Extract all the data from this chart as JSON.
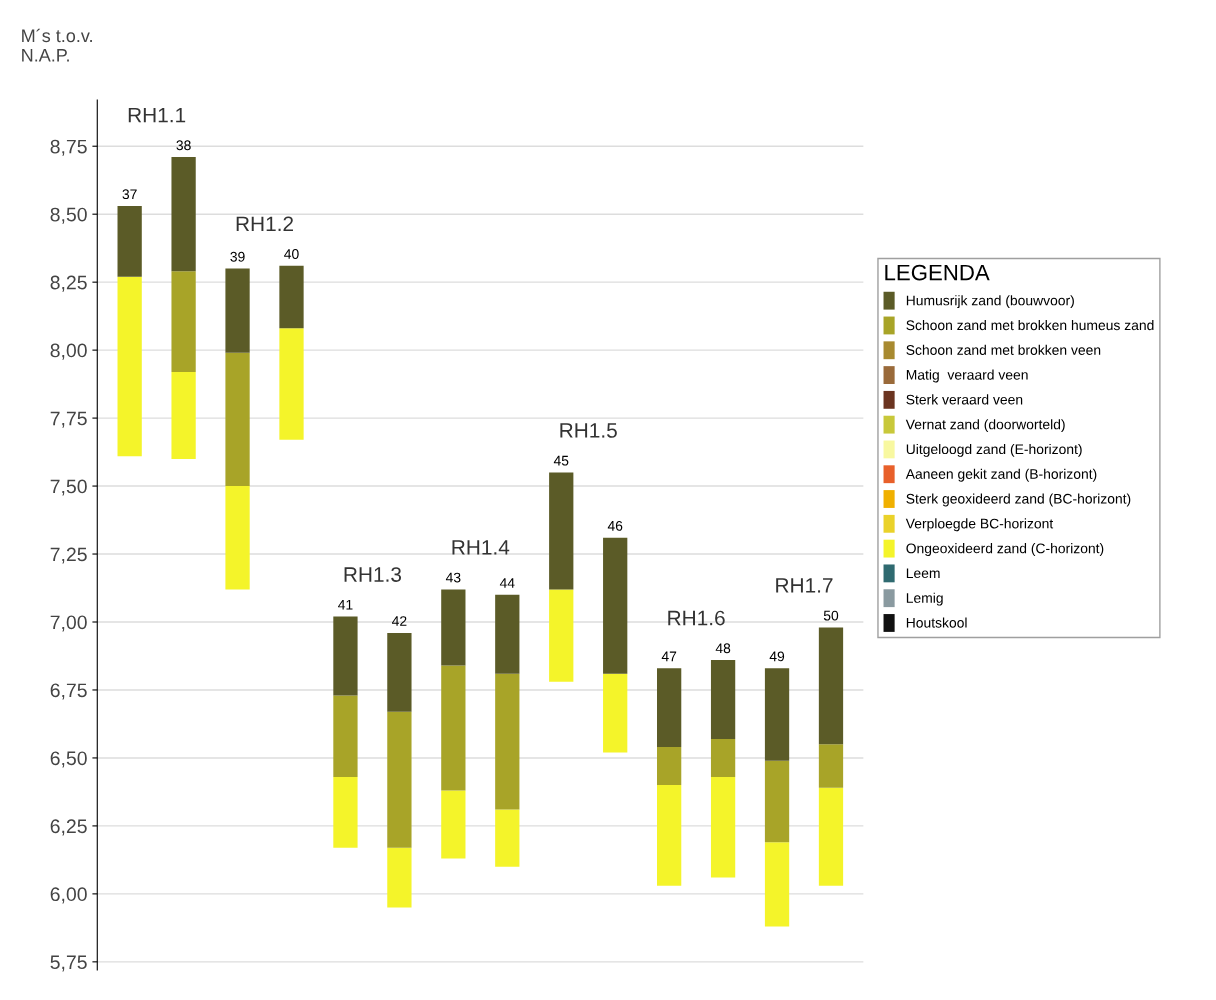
{
  "chart_data": {
    "type": "bar",
    "ylabel": "M´s t.o.v.\nN.A.P.",
    "legend_title": "LEGENDA",
    "categories": [
      "37",
      "38",
      "39",
      "40",
      "41",
      "42",
      "43",
      "44",
      "45",
      "46",
      "47",
      "48",
      "49",
      "50"
    ],
    "series": [
      {
        "name": "Houtskool",
        "color": "#111111",
        "values": [
          null,
          null,
          null,
          null,
          null,
          null,
          null,
          null,
          null,
          null,
          null,
          null,
          null,
          null
        ]
      },
      {
        "name": "Lemig",
        "color": "#8a9aa0",
        "values": [
          null,
          null,
          null,
          null,
          null,
          null,
          null,
          null,
          null,
          null,
          null,
          null,
          null,
          null
        ]
      },
      {
        "name": "Leem",
        "color": "#2f6a70",
        "values": [
          null,
          null,
          null,
          null,
          null,
          null,
          null,
          null,
          null,
          null,
          null,
          null,
          null,
          null
        ]
      },
      {
        "name": "Ongeoxideerd zand (C-horizont)",
        "color": "#f4f42a",
        "base": [
          7.61,
          7.6,
          7.12,
          7.67,
          6.17,
          5.95,
          6.13,
          6.1,
          6.78,
          6.52,
          6.03,
          6.06,
          5.88,
          6.03
        ],
        "values": [
          0.66,
          0.32,
          0.38,
          0.41,
          0.26,
          0.22,
          0.25,
          0.21,
          0.34,
          0.29,
          0.37,
          0.37,
          0.31,
          0.36
        ]
      },
      {
        "name": "Verploegde BC-horizont",
        "color": "#ead22a",
        "values": [
          null,
          null,
          null,
          null,
          null,
          null,
          null,
          null,
          null,
          null,
          null,
          null,
          null,
          null
        ]
      },
      {
        "name": "Sterk geoxideerd zand (BC-horizont)",
        "color": "#f0b000",
        "values": [
          null,
          null,
          null,
          null,
          null,
          null,
          null,
          null,
          null,
          null,
          null,
          null,
          null,
          null
        ]
      },
      {
        "name": "Aaneen gekit zand (B-horizont)",
        "color": "#e8602a",
        "values": [
          null,
          null,
          null,
          null,
          null,
          null,
          null,
          null,
          null,
          null,
          null,
          null,
          null,
          null
        ]
      },
      {
        "name": "Uitgeloogd zand (E-horizont)",
        "color": "#f8f8a0",
        "values": [
          null,
          null,
          null,
          null,
          null,
          null,
          null,
          null,
          null,
          null,
          null,
          null,
          null,
          null
        ]
      },
      {
        "name": "Vernat zand (doorworteld)",
        "color": "#c8c83a",
        "values": [
          null,
          null,
          null,
          null,
          null,
          null,
          null,
          null,
          null,
          null,
          null,
          null,
          null,
          null
        ]
      },
      {
        "name": "Sterk veraard veen",
        "color": "#6b3420",
        "values": [
          null,
          null,
          null,
          null,
          null,
          null,
          null,
          null,
          null,
          null,
          null,
          null,
          null,
          null
        ]
      },
      {
        "name": "Matig  veraard veen",
        "color": "#9a6a3a",
        "values": [
          null,
          null,
          null,
          null,
          null,
          null,
          null,
          null,
          null,
          null,
          null,
          null,
          null,
          null
        ]
      },
      {
        "name": "Schoon zand met brokken veen",
        "color": "#a88a30",
        "values": [
          null,
          null,
          null,
          null,
          null,
          null,
          null,
          null,
          null,
          null,
          null,
          null,
          null,
          null
        ]
      },
      {
        "name": "Schoon zand met brokken humeus zand",
        "color": "#a8a428",
        "base": [
          null,
          7.92,
          7.5,
          null,
          6.43,
          6.17,
          6.38,
          6.31,
          null,
          null,
          6.4,
          6.43,
          6.19,
          6.39
        ],
        "values": [
          null,
          0.37,
          0.49,
          null,
          0.3,
          0.5,
          0.46,
          0.5,
          null,
          null,
          0.14,
          0.14,
          0.3,
          0.16
        ]
      },
      {
        "name": "Humusrijk zand (bouwvoor)",
        "color": "#5b5b27",
        "base": [
          8.27,
          8.29,
          7.99,
          8.08,
          6.73,
          6.67,
          6.84,
          6.81,
          7.12,
          6.81,
          6.54,
          6.57,
          6.49,
          6.55
        ],
        "values": [
          0.26,
          0.42,
          0.31,
          0.23,
          0.29,
          0.29,
          0.28,
          0.29,
          0.43,
          0.5,
          0.29,
          0.29,
          0.34,
          0.43
        ]
      }
    ],
    "ylim": [
      5.72,
      8.92
    ],
    "yticks": [
      {
        "value": 5.75,
        "label": "5,75"
      },
      {
        "value": 6.0,
        "label": "6,00"
      },
      {
        "value": 6.25,
        "label": "6,25"
      },
      {
        "value": 6.5,
        "label": "6,50"
      },
      {
        "value": 6.75,
        "label": "6,75"
      },
      {
        "value": 7.0,
        "label": "7,00"
      },
      {
        "value": 7.25,
        "label": "7,25"
      },
      {
        "value": 7.5,
        "label": "7,50"
      },
      {
        "value": 7.75,
        "label": "7,75"
      },
      {
        "value": 8.0,
        "label": "8,00"
      },
      {
        "value": 8.25,
        "label": "8,25"
      },
      {
        "value": 8.5,
        "label": "8,50"
      },
      {
        "value": 8.75,
        "label": "8,75"
      }
    ],
    "tick_labels": "y",
    "grid": "y",
    "legend": "right",
    "annotations": [
      "RH1.1",
      "RH1.2",
      "RH1.3",
      "RH1.4",
      "RH1.5",
      "RH1.6",
      "RH1.7"
    ]
  }
}
